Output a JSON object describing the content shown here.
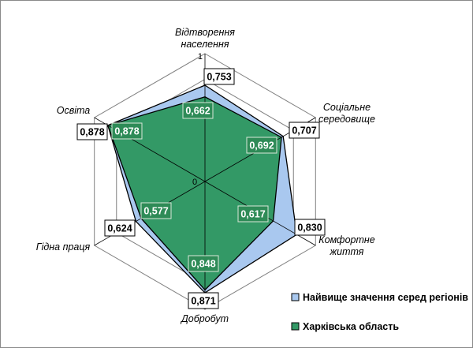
{
  "chart_data": {
    "type": "radar",
    "axes": [
      [
        "Відтворення",
        "населення"
      ],
      [
        "Соціальне",
        "середовище"
      ],
      [
        "Комфортне",
        "життя"
      ],
      [
        "Добробут"
      ],
      [
        "Гідна праця"
      ],
      [
        "Освіта"
      ]
    ],
    "tick_min_label": "0",
    "tick_max_label": "1",
    "range": [
      0,
      1
    ],
    "series": [
      {
        "name": "Найвище значення серед регіонів",
        "values": [
          0.753,
          0.707,
          0.83,
          0.871,
          0.624,
          0.878
        ],
        "labels": [
          "0,753",
          "0,707",
          "0,830",
          "0,871",
          "0,624",
          "0,878"
        ],
        "color": "#a9c8ef"
      },
      {
        "name": "Харківська область",
        "values": [
          0.662,
          0.692,
          0.617,
          0.848,
          0.577,
          0.878
        ],
        "labels": [
          "0,662",
          "0,692",
          "0,617",
          "0,848",
          "0,577",
          "0,878"
        ],
        "color": "#339966"
      }
    ],
    "grid_color": "#7f7f7f",
    "legend_placement": "bottom-right"
  }
}
